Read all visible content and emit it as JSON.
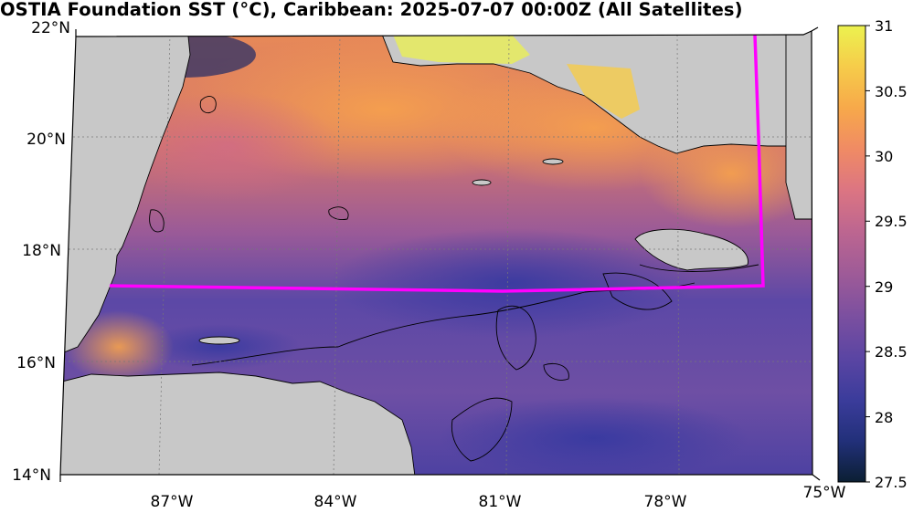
{
  "title": "OSTIA Foundation SST (°C), Caribbean: 2025-07-07 00:00Z (All Satellites)",
  "map": {
    "lat_labels": [
      "22°N",
      "20°N",
      "18°N",
      "16°N",
      "14°N"
    ],
    "lon_labels": [
      "87°W",
      "84°W",
      "81°W",
      "78°W",
      "75°W"
    ],
    "lat_values": [
      22,
      20,
      18,
      16,
      14
    ],
    "lon_values": [
      -87,
      -84,
      -81,
      -78,
      -75
    ],
    "extent": {
      "lon_min": -89,
      "lon_max": -75,
      "lat_min": 14,
      "lat_max": 22
    },
    "land_color": "#c8c8c8",
    "boundary_line_color": "#ff00ff",
    "places": [
      "cuba",
      "jamaica",
      "honduras",
      "nicaragua",
      "belize",
      "yucatan",
      "cayman-islands",
      "haiti"
    ]
  },
  "colorbar": {
    "label_values": [
      31,
      30.5,
      30,
      29.5,
      29,
      28.5,
      28,
      27.5
    ],
    "labels": [
      "31",
      "30.5",
      "30",
      "29.5",
      "29",
      "28.5",
      "28",
      "27.5"
    ],
    "vmin": 27.5,
    "vmax": 31,
    "colormap": [
      "#0b1f33",
      "#22307a",
      "#3b3c9b",
      "#5a45a3",
      "#7a4fa0",
      "#9c5a98",
      "#bd6690",
      "#dc7582",
      "#f08b64",
      "#f7a94a",
      "#f6cc4a",
      "#ecf24f"
    ]
  }
}
